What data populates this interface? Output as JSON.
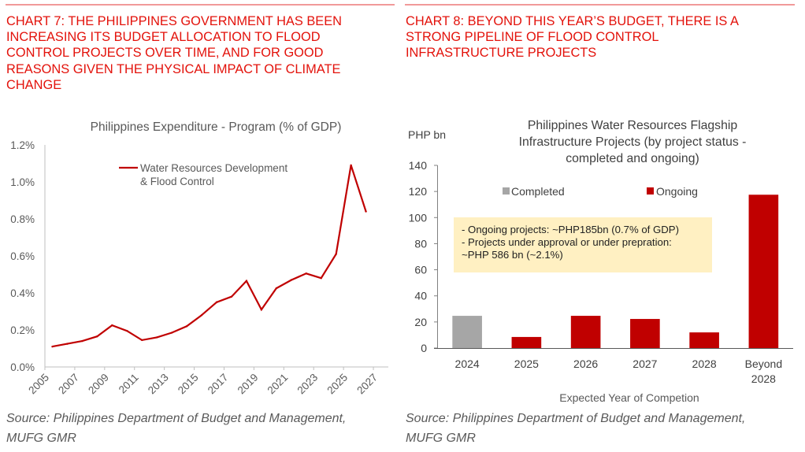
{
  "left_panel": {
    "heading": "CHART 7: THE PHILIPPINES GOVERNMENT HAS BEEN INCREASING ITS BUDGET ALLOCATION TO FLOOD CONTROL PROJECTS OVER TIME, AND FOR GOOD REASONS GIVEN THE PHYSICAL IMPACT OF CLIMATE CHANGE",
    "heading_lines": [
      "CHART 7: THE PHILIPPINES GOVERNMENT HAS BEEN",
      "INCREASING ITS BUDGET ALLOCATION TO FLOOD",
      "CONTROL PROJECTS OVER TIME, AND FOR GOOD",
      "REASONS GIVEN THE PHYSICAL IMPACT OF CLIMATE",
      "CHANGE"
    ],
    "source_lines": [
      "Source: Philippines Department of Budget and Management,",
      "MUFG GMR"
    ]
  },
  "right_panel": {
    "heading_lines": [
      "CHART 8: BEYOND THIS YEAR’S BUDGET, THERE IS A",
      "STRONG PIPELINE OF FLOOD CONTROL",
      "INFRASTRUCTURE PROJECTS"
    ],
    "source_lines": [
      "Source: Philippines Department of Budget and Management,",
      "MUFG GMR"
    ]
  },
  "colors": {
    "heading_red": "#e3120b",
    "series_red": "#c00000",
    "completed_gray": "#a6a6a6",
    "note_bg": "#fff0c2",
    "axis_text": "#595959"
  },
  "chart_data": [
    {
      "type": "line",
      "title": "Philippines Expenditure - Program (% of GDP)",
      "xlabel": "",
      "ylabel": "",
      "x": [
        2005,
        2006,
        2007,
        2008,
        2009,
        2010,
        2011,
        2012,
        2013,
        2014,
        2015,
        2016,
        2017,
        2018,
        2019,
        2020,
        2021,
        2022,
        2023,
        2024,
        2025,
        2026
      ],
      "x_tick_labels": [
        "2005",
        "2007",
        "2009",
        "2011",
        "2013",
        "2015",
        "2017",
        "2019",
        "2021",
        "2023",
        "2025",
        "2027"
      ],
      "y_tick_labels": [
        "0.0%",
        "0.2%",
        "0.4%",
        "0.6%",
        "0.8%",
        "1.0%",
        "1.2%"
      ],
      "ylim": [
        0,
        1.2
      ],
      "xlim": [
        2005,
        2027
      ],
      "grid": false,
      "legend_position": "top-center",
      "series": [
        {
          "name": "Water Resources Development & Flood Control",
          "legend_lines": [
            "Water Resources Development",
            "& Flood Control"
          ],
          "values": [
            0.11,
            0.125,
            0.14,
            0.165,
            0.225,
            0.195,
            0.145,
            0.16,
            0.185,
            0.22,
            0.28,
            0.35,
            0.38,
            0.465,
            0.31,
            0.425,
            0.47,
            0.505,
            0.48,
            0.61,
            1.09,
            0.84
          ]
        }
      ]
    },
    {
      "type": "bar",
      "title": "Philippines Water Resources Flagship Infrastructure Projects (by project status - completed and ongoing)",
      "title_lines": [
        "Philippines Water Resources Flagship",
        "Infrastructure Projects (by project status -",
        "completed and ongoing)"
      ],
      "ylabel": "PHP bn",
      "xlabel": "Expected Year of Competion",
      "categories": [
        "2024",
        "2025",
        "2026",
        "2027",
        "2028",
        "Beyond 2028"
      ],
      "category_lines": [
        [
          "2024"
        ],
        [
          "2025"
        ],
        [
          "2026"
        ],
        [
          "2027"
        ],
        [
          "2028"
        ],
        [
          "Beyond",
          "2028"
        ]
      ],
      "ylim": [
        0,
        140
      ],
      "y_ticks": [
        0,
        20,
        40,
        60,
        80,
        100,
        120,
        140
      ],
      "grid": false,
      "legend_position": "top",
      "series": [
        {
          "name": "Completed",
          "values": [
            24.7,
            null,
            null,
            null,
            null,
            null
          ]
        },
        {
          "name": "Ongoing",
          "values": [
            null,
            8.5,
            24.7,
            22.3,
            12,
            117.5
          ]
        }
      ],
      "annotation": {
        "lines": [
          "- Ongoing projects: ~PHP185bn (0.7% of GDP)",
          "- Projects under approval or under prepration:",
          "~PHP 586 bn (~2.1%)"
        ]
      }
    }
  ]
}
